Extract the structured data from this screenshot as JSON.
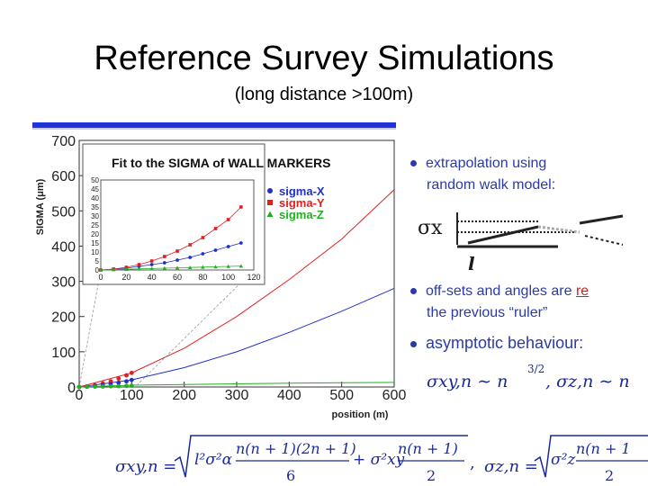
{
  "slide": {
    "title": "Reference Survey Simulations",
    "subtitle": "(long distance >100m)"
  },
  "bullets": [
    {
      "line1": "extrapolation using",
      "line2": "random walk model:"
    },
    {
      "line1": "off-sets and angles are",
      "line1_tail": "re",
      "line2": "the previous “ruler”"
    },
    {
      "line1": "asymptotic behaviour:"
    }
  ],
  "diagram": {
    "sigma_label": "σx",
    "l_label": "l"
  },
  "asymptotic_formula": {
    "lhs": "σxy,n ∼ n",
    "exp": "3/2",
    "rhs": ",   σz,n ∼ n"
  },
  "bottom_formula": {
    "sigma_xy": "σxy,n =",
    "term1_num": "n(n + 1)(2n + 1)",
    "term1_den": "6",
    "term2_num": "n(n + 1)",
    "term2_den": "2",
    "sigma_z": "σz,n =",
    "term3_num": "n(n + 1",
    "term3_den": "2",
    "l2s2": "l²σ²α",
    "plus": "+ σ²xy",
    "s2z": "σ²z"
  },
  "chart_data": [
    {
      "type": "line",
      "xlabel": "position (m)",
      "ylabel": "SIGMA (μm)",
      "xlim": [
        0,
        600
      ],
      "ylim": [
        0,
        700
      ],
      "x_ticks": [
        "0",
        "100",
        "200",
        "300",
        "400",
        "500",
        "600"
      ],
      "y_ticks": [
        "0",
        "100",
        "200",
        "300",
        "400",
        "500",
        "600",
        "700"
      ],
      "series": [
        {
          "name": "sigma-X",
          "color": "#2030c8",
          "x": [
            0,
            100,
            200,
            300,
            400,
            500,
            600
          ],
          "y": [
            0,
            20,
            55,
            100,
            155,
            215,
            280
          ]
        },
        {
          "name": "sigma-Y",
          "color": "#e02020",
          "x": [
            0,
            100,
            200,
            300,
            400,
            500,
            600
          ],
          "y": [
            0,
            40,
            110,
            200,
            305,
            420,
            560
          ]
        },
        {
          "name": "sigma-Z",
          "color": "#20b020",
          "x": [
            0,
            100,
            200,
            300,
            400,
            500,
            600
          ],
          "y": [
            0,
            5,
            7,
            9,
            11,
            12,
            13
          ]
        }
      ]
    },
    {
      "type": "scatter",
      "title": "Fit to the SIGMA of WALL MARKERS",
      "xlim": [
        0,
        120
      ],
      "ylim": [
        0,
        50
      ],
      "x_ticks": [
        "0",
        "20",
        "40",
        "60",
        "80",
        "100",
        "120"
      ],
      "y_ticks": [
        "0",
        "5",
        "10",
        "15",
        "20",
        "25",
        "30",
        "35",
        "40",
        "45",
        "50"
      ],
      "legend": "top-right",
      "series": [
        {
          "name": "sigma-X",
          "color": "#2030c8",
          "marker": "circle",
          "x": [
            0,
            10,
            20,
            30,
            40,
            50,
            60,
            70,
            80,
            90,
            100,
            110
          ],
          "y": [
            0,
            0.5,
            1,
            2,
            3,
            4,
            5.5,
            7,
            9,
            11,
            13,
            15
          ]
        },
        {
          "name": "sigma-Y",
          "color": "#e02020",
          "marker": "square",
          "x": [
            0,
            10,
            20,
            30,
            40,
            50,
            60,
            70,
            80,
            90,
            100,
            110
          ],
          "y": [
            0,
            0.5,
            1.5,
            3,
            5,
            7.5,
            10.5,
            14,
            18,
            23,
            28,
            35
          ]
        },
        {
          "name": "sigma-Z",
          "color": "#20b020",
          "marker": "triangle",
          "x": [
            0,
            10,
            20,
            30,
            40,
            50,
            60,
            70,
            80,
            90,
            100,
            110
          ],
          "y": [
            0,
            0.2,
            0.4,
            0.6,
            0.8,
            1,
            1.2,
            1.4,
            1.6,
            1.8,
            2,
            2.2
          ]
        }
      ]
    }
  ]
}
